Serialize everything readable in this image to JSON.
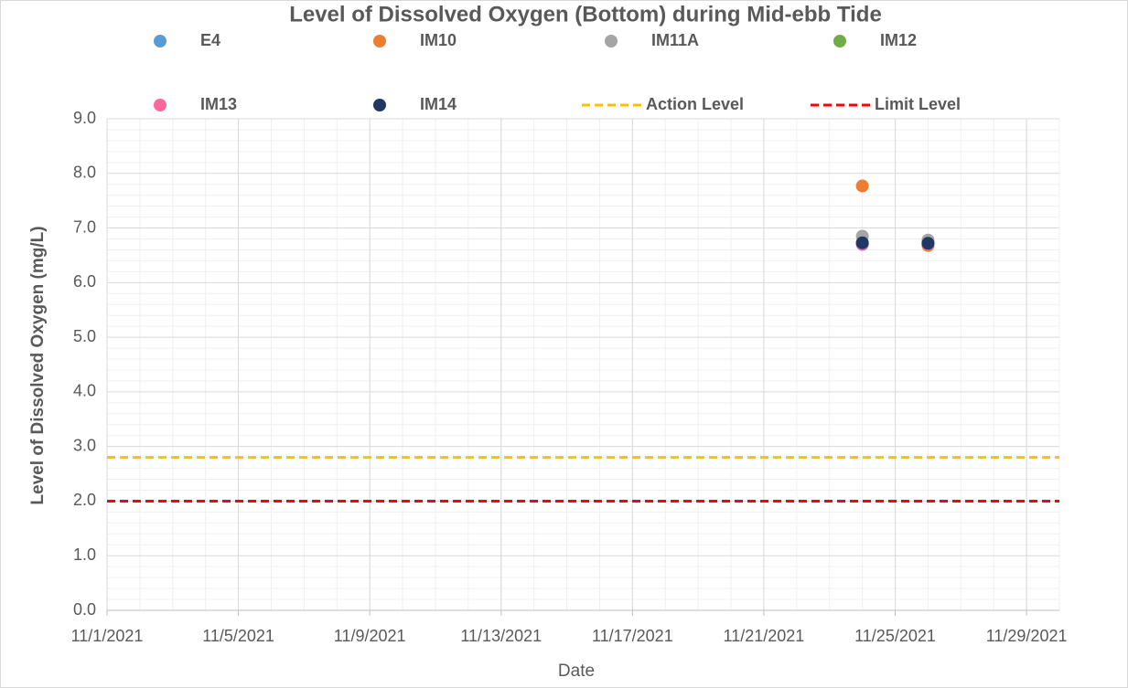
{
  "chart_data": {
    "type": "scatter",
    "title": "Level of Dissolved Oxygen (Bottom) during Mid-ebb Tide",
    "x_label": "Date",
    "y_label": "Level of Dissolved Oxygen (mg/L)",
    "xlim": [
      "11/1/2021",
      "11/30/2021"
    ],
    "xticks": [
      "11/1/2021",
      "11/5/2021",
      "11/9/2021",
      "11/13/2021",
      "11/17/2021",
      "11/21/2021",
      "11/25/2021",
      "11/29/2021"
    ],
    "ylim": [
      0,
      9
    ],
    "yticks": [
      {
        "value": 0,
        "label": "0.0"
      },
      {
        "value": 1,
        "label": "1.0"
      },
      {
        "value": 2,
        "label": "2.0"
      },
      {
        "value": 3,
        "label": "3.0"
      },
      {
        "value": 4,
        "label": "4.0"
      },
      {
        "value": 5,
        "label": "5.0"
      },
      {
        "value": 6,
        "label": "6.0"
      },
      {
        "value": 7,
        "label": "7.0"
      },
      {
        "value": 8,
        "label": "8.0"
      },
      {
        "value": 9,
        "label": "9.0"
      }
    ],
    "grid": true,
    "minor_grid": true,
    "legend": "top",
    "series": [
      {
        "name": "E4",
        "color": "#5b9bd5",
        "x": [
          "11/24/2021",
          "11/26/2021"
        ],
        "values": [
          6.7,
          6.75
        ]
      },
      {
        "name": "IM10",
        "color": "#ed7d31",
        "x": [
          "11/24/2021",
          "11/26/2021"
        ],
        "values": [
          7.77,
          6.68
        ]
      },
      {
        "name": "IM11A",
        "color": "#a5a5a5",
        "x": [
          "11/24/2021",
          "11/26/2021"
        ],
        "values": [
          6.85,
          6.78
        ]
      },
      {
        "name": "IM12",
        "color": "#70ad47",
        "x": [
          "11/24/2021",
          "11/26/2021"
        ],
        "values": [
          6.72,
          6.72
        ]
      },
      {
        "name": "IM13",
        "color": "#ff6699",
        "x": [
          "11/24/2021",
          "11/26/2021"
        ],
        "values": [
          6.71,
          6.71
        ]
      },
      {
        "name": "IM14",
        "color": "#1f3864",
        "x": [
          "11/24/2021",
          "11/26/2021"
        ],
        "values": [
          6.73,
          6.72
        ]
      }
    ],
    "levels": [
      {
        "name": "Action Level",
        "color": "#ffc000",
        "value": 2.8
      },
      {
        "name": "Limit Level",
        "color": "#ff0000",
        "value": 2.0
      }
    ]
  }
}
